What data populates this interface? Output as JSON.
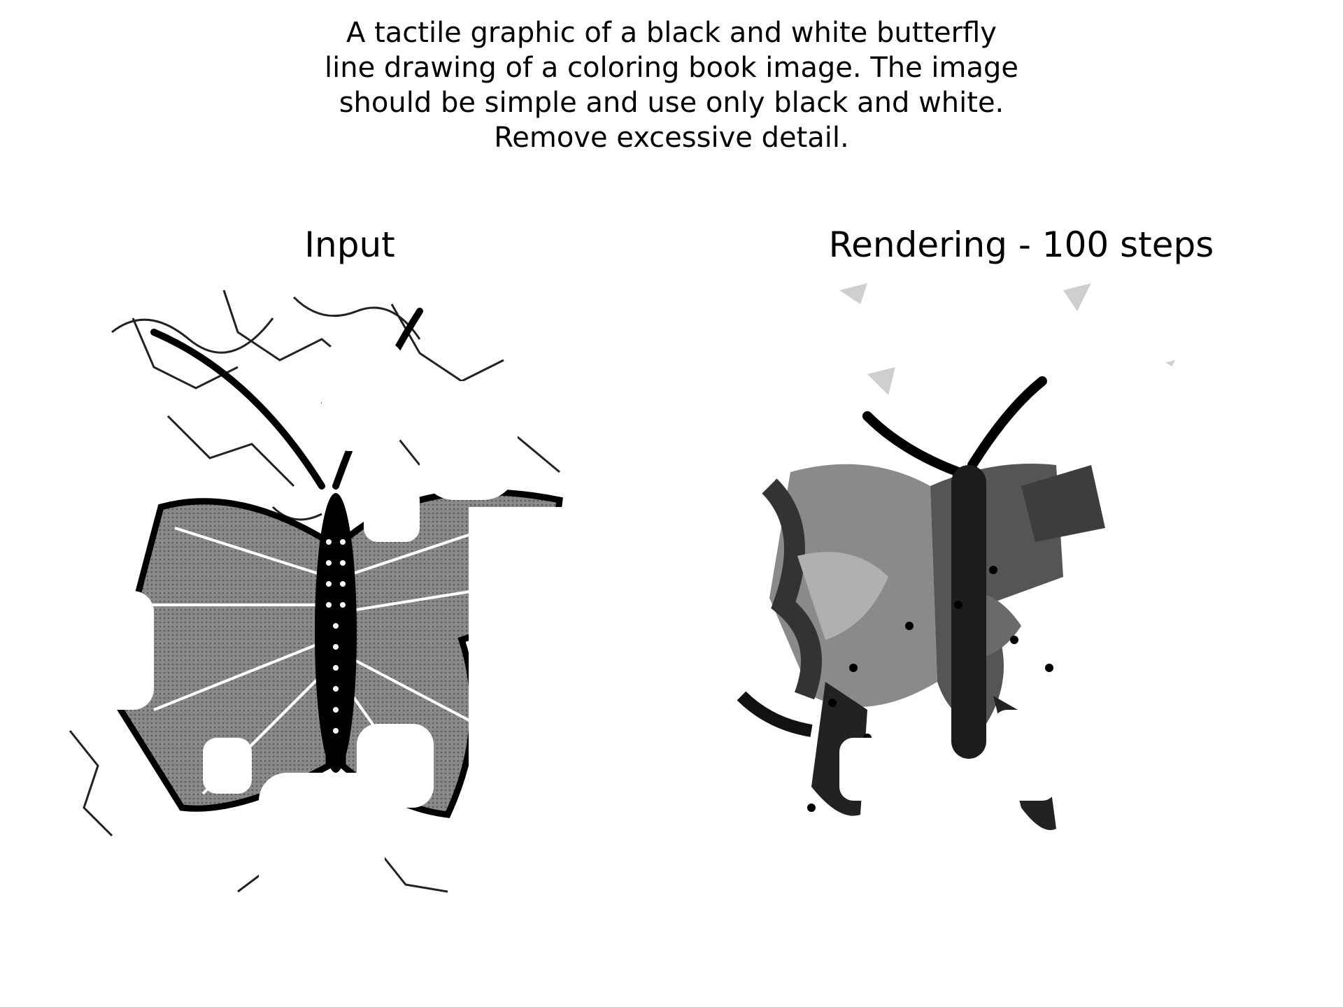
{
  "caption": {
    "lines": [
      "A tactile graphic of a black and white butterfly",
      "line drawing of a coloring book image. The image",
      "should be simple and use only black and white.",
      "Remove excessive detail."
    ]
  },
  "panels": {
    "input_title": "Input",
    "rendering_title": "Rendering - 100 steps"
  },
  "colors": {
    "background": "#ffffff",
    "ink": "#000000",
    "wing_gray": "#7a7a7a",
    "dark_gray": "#3a3a3a",
    "light_gray": "#c8c8c8"
  }
}
